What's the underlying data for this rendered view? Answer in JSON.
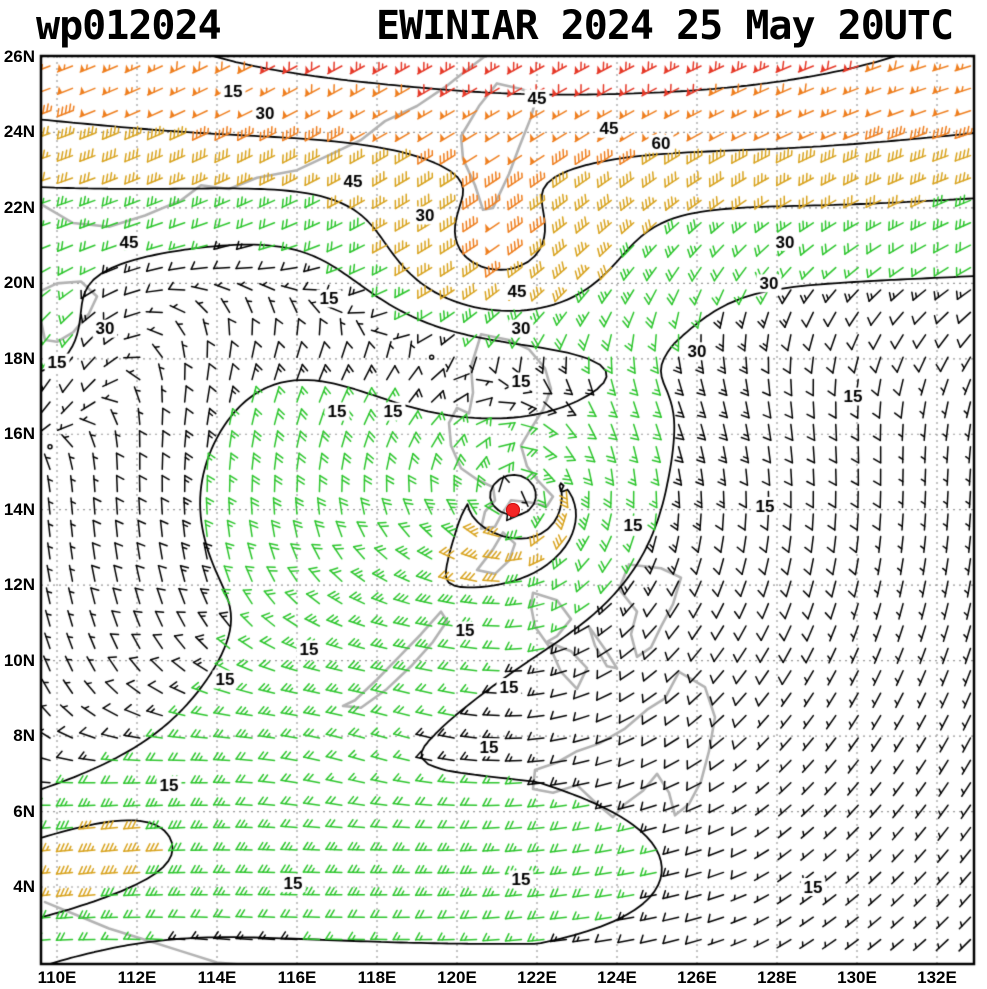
{
  "header": {
    "storm_id": "wp012024",
    "title": "EWINIAR 2024 25 May 20UTC"
  },
  "axes": {
    "lat_ticks": [
      {
        "label": "26N",
        "lat": 26
      },
      {
        "label": "24N",
        "lat": 24
      },
      {
        "label": "22N",
        "lat": 22
      },
      {
        "label": "20N",
        "lat": 20
      },
      {
        "label": "18N",
        "lat": 18
      },
      {
        "label": "16N",
        "lat": 16
      },
      {
        "label": "14N",
        "lat": 14
      },
      {
        "label": "12N",
        "lat": 12
      },
      {
        "label": "10N",
        "lat": 10
      },
      {
        "label": "8N",
        "lat": 8
      },
      {
        "label": "6N",
        "lat": 6
      },
      {
        "label": "4N",
        "lat": 4
      }
    ],
    "lon_ticks": [
      {
        "label": "110E",
        "lon": 110
      },
      {
        "label": "112E",
        "lon": 112
      },
      {
        "label": "114E",
        "lon": 114
      },
      {
        "label": "116E",
        "lon": 116
      },
      {
        "label": "118E",
        "lon": 118
      },
      {
        "label": "120E",
        "lon": 120
      },
      {
        "label": "122E",
        "lon": 122
      },
      {
        "label": "124E",
        "lon": 124
      },
      {
        "label": "126E",
        "lon": 126
      },
      {
        "label": "128E",
        "lon": 128
      },
      {
        "label": "130E",
        "lon": 130
      },
      {
        "label": "132E",
        "lon": 132
      }
    ]
  },
  "chart_data": {
    "type": "wind-barb-map",
    "title": "EWINIAR 2024 25 May 20UTC",
    "storm": {
      "id": "wp012024",
      "name": "EWINIAR",
      "datetime": "25 May 2024 20UTC",
      "center": {
        "lon": 121.4,
        "lat": 14.0
      }
    },
    "lon_range": [
      109.6,
      132.95
    ],
    "lat_range": [
      1.9,
      26.05
    ],
    "grid_interval_deg": 2,
    "grid_on": true,
    "isotach_levels_kt": [
      15,
      30,
      45,
      60
    ],
    "wind_speed_colors": {
      "lt15": "#000000",
      "c15_30": "#2dc62d",
      "c30_45": "#d9a420",
      "c45_60": "#ef7f1f",
      "ge60": "#e63928"
    },
    "storm_marker_color": "#f42525",
    "coastline_color": "#b3b3b3",
    "contour_color": "#000000",
    "contour_labels": [
      {
        "t": "15",
        "lon": 114.4,
        "lat": 25.1
      },
      {
        "t": "30",
        "lon": 115.2,
        "lat": 24.5
      },
      {
        "t": "45",
        "lon": 122.0,
        "lat": 24.9
      },
      {
        "t": "45",
        "lon": 123.8,
        "lat": 24.1
      },
      {
        "t": "60",
        "lon": 125.1,
        "lat": 23.7
      },
      {
        "t": "45",
        "lon": 117.4,
        "lat": 22.7
      },
      {
        "t": "30",
        "lon": 119.2,
        "lat": 21.8
      },
      {
        "t": "45",
        "lon": 111.8,
        "lat": 21.1
      },
      {
        "t": "30",
        "lon": 128.2,
        "lat": 21.1
      },
      {
        "t": "30",
        "lon": 127.8,
        "lat": 20.0
      },
      {
        "t": "45",
        "lon": 121.5,
        "lat": 19.8
      },
      {
        "t": "15",
        "lon": 116.8,
        "lat": 19.6
      },
      {
        "t": "30",
        "lon": 111.2,
        "lat": 18.8
      },
      {
        "t": "30",
        "lon": 121.6,
        "lat": 18.8
      },
      {
        "t": "30",
        "lon": 126.0,
        "lat": 18.2
      },
      {
        "t": "15",
        "lon": 110.0,
        "lat": 17.9
      },
      {
        "t": "15",
        "lon": 121.6,
        "lat": 17.4
      },
      {
        "t": "15",
        "lon": 129.9,
        "lat": 17.0
      },
      {
        "t": "15",
        "lon": 117.0,
        "lat": 16.6
      },
      {
        "t": "15",
        "lon": 118.4,
        "lat": 16.6
      },
      {
        "t": "15",
        "lon": 127.7,
        "lat": 14.1
      },
      {
        "t": "15",
        "lon": 124.4,
        "lat": 13.6
      },
      {
        "t": "15",
        "lon": 120.2,
        "lat": 10.8
      },
      {
        "t": "15",
        "lon": 116.3,
        "lat": 10.3
      },
      {
        "t": "15",
        "lon": 114.2,
        "lat": 9.5
      },
      {
        "t": "15",
        "lon": 121.3,
        "lat": 9.3
      },
      {
        "t": "15",
        "lon": 120.8,
        "lat": 7.7
      },
      {
        "t": "15",
        "lon": 112.8,
        "lat": 6.7
      },
      {
        "t": "15",
        "lon": 115.9,
        "lat": 4.1
      },
      {
        "t": "15",
        "lon": 121.6,
        "lat": 4.2
      },
      {
        "t": "15",
        "lon": 128.9,
        "lat": 4.0
      }
    ],
    "wind_field_model": {
      "vortex": {
        "lon": 121.5,
        "lat": 14.05,
        "vmax": 30,
        "rmw": 1.25,
        "decay": 0.8,
        "outer_amp": 12,
        "outer_r": 6,
        "outer_w": 4,
        "outer_phase": 2.4
      },
      "jet": {
        "amp": 72,
        "lat0": 27.0,
        "width": 5.8,
        "lon_peak": 123.5,
        "lon_width": 12,
        "base": 0.78,
        "peak_frac": 0.22,
        "dir_u": 0.92,
        "v_amp": 0.39,
        "v_lon0": 118,
        "v_lonw": 14,
        "v_base": 0.1
      },
      "dip": {
        "amp": 42,
        "lat0": 20.3,
        "latw": 2.4,
        "lon0": 120.8,
        "lonw": 3.4,
        "du": 0.9,
        "dv": 0.44
      },
      "surge": {
        "amp": 16,
        "lat_base": 4.5,
        "slope": 0.78,
        "width": 2.6,
        "lon_end": 123,
        "du": 0.92,
        "dv": 0.3
      },
      "eq": {
        "amp": 19,
        "lat0": 4.3,
        "width": 2.2,
        "lon_fade": 122,
        "lon_end": 128,
        "du": 0.98,
        "dv": 0.12
      },
      "west_patch": {
        "amp": 18,
        "lat0": 18.2,
        "latw": 2.3,
        "lon0": 109.5,
        "lonw": 2.6,
        "du": 0.35,
        "dv": 0.94
      }
    },
    "coastlines": [
      {
        "name": "china-coast",
        "closed": false,
        "pts": [
          [
            109.6,
            22.1
          ],
          [
            110.4,
            21.6
          ],
          [
            111.3,
            21.5
          ],
          [
            112.2,
            21.8
          ],
          [
            113.1,
            22.2
          ],
          [
            113.6,
            22.6
          ],
          [
            114.3,
            22.5
          ],
          [
            115.0,
            22.8
          ],
          [
            116.0,
            23.0
          ],
          [
            116.8,
            23.4
          ],
          [
            117.6,
            23.8
          ],
          [
            118.2,
            24.3
          ],
          [
            119.0,
            24.7
          ],
          [
            119.7,
            25.2
          ],
          [
            120.3,
            25.7
          ],
          [
            120.8,
            26.1
          ]
        ]
      },
      {
        "name": "hainan",
        "closed": true,
        "pts": [
          [
            110.0,
            20.0
          ],
          [
            110.6,
            20.05
          ],
          [
            111.0,
            19.65
          ],
          [
            110.8,
            19.2
          ],
          [
            110.4,
            18.7
          ],
          [
            110.0,
            18.45
          ],
          [
            109.7,
            18.5
          ],
          [
            109.6,
            19.0
          ],
          [
            109.6,
            19.8
          ],
          [
            110.0,
            20.0
          ]
        ]
      },
      {
        "name": "taiwan",
        "closed": true,
        "pts": [
          [
            121.0,
            25.3
          ],
          [
            121.6,
            25.15
          ],
          [
            122.0,
            25.0
          ],
          [
            121.85,
            24.4
          ],
          [
            121.55,
            23.6
          ],
          [
            121.3,
            22.9
          ],
          [
            120.9,
            22.0
          ],
          [
            120.65,
            21.95
          ],
          [
            120.45,
            22.6
          ],
          [
            120.15,
            23.3
          ],
          [
            120.1,
            23.9
          ],
          [
            120.55,
            24.7
          ],
          [
            121.0,
            25.3
          ]
        ]
      },
      {
        "name": "luzon",
        "closed": true,
        "pts": [
          [
            120.6,
            18.65
          ],
          [
            121.3,
            18.5
          ],
          [
            121.8,
            18.25
          ],
          [
            122.2,
            17.75
          ],
          [
            122.35,
            17.2
          ],
          [
            122.15,
            16.65
          ],
          [
            121.85,
            16.15
          ],
          [
            121.6,
            15.7
          ],
          [
            121.75,
            15.15
          ],
          [
            122.0,
            14.8
          ],
          [
            122.4,
            14.35
          ],
          [
            122.25,
            14.1
          ],
          [
            121.8,
            14.2
          ],
          [
            121.35,
            14.25
          ],
          [
            121.1,
            13.85
          ],
          [
            120.95,
            13.55
          ],
          [
            120.6,
            13.5
          ],
          [
            120.7,
            13.95
          ],
          [
            120.95,
            14.25
          ],
          [
            120.9,
            14.6
          ],
          [
            120.5,
            14.8
          ],
          [
            120.1,
            15.1
          ],
          [
            119.85,
            15.7
          ],
          [
            119.8,
            16.3
          ],
          [
            120.0,
            16.7
          ],
          [
            120.3,
            16.55
          ],
          [
            120.4,
            17.1
          ],
          [
            120.35,
            17.8
          ],
          [
            120.5,
            18.3
          ],
          [
            120.6,
            18.65
          ]
        ]
      },
      {
        "name": "mindoro",
        "closed": true,
        "pts": [
          [
            121.15,
            13.4
          ],
          [
            120.9,
            12.95
          ],
          [
            120.5,
            12.4
          ],
          [
            120.95,
            12.3
          ],
          [
            121.3,
            12.65
          ],
          [
            121.45,
            13.1
          ],
          [
            121.15,
            13.4
          ]
        ]
      },
      {
        "name": "palawan",
        "closed": true,
        "pts": [
          [
            119.6,
            11.3
          ],
          [
            119.1,
            10.7
          ],
          [
            118.55,
            10.1
          ],
          [
            118.0,
            9.5
          ],
          [
            117.45,
            8.95
          ],
          [
            117.15,
            8.8
          ],
          [
            117.6,
            8.75
          ],
          [
            118.25,
            9.25
          ],
          [
            118.85,
            9.85
          ],
          [
            119.4,
            10.5
          ],
          [
            119.75,
            11.05
          ],
          [
            119.6,
            11.3
          ]
        ]
      },
      {
        "name": "samar-leyte",
        "closed": true,
        "pts": [
          [
            124.3,
            12.55
          ],
          [
            125.1,
            12.45
          ],
          [
            125.6,
            12.2
          ],
          [
            125.4,
            11.5
          ],
          [
            125.1,
            10.9
          ],
          [
            124.85,
            10.35
          ],
          [
            124.5,
            10.1
          ],
          [
            124.35,
            10.7
          ],
          [
            124.5,
            11.3
          ],
          [
            124.05,
            11.9
          ],
          [
            124.3,
            12.55
          ]
        ]
      },
      {
        "name": "panay-negros",
        "closed": true,
        "pts": [
          [
            121.9,
            11.8
          ],
          [
            122.5,
            11.6
          ],
          [
            122.85,
            11.1
          ],
          [
            122.5,
            10.65
          ],
          [
            122.25,
            10.5
          ],
          [
            122.85,
            10.25
          ],
          [
            123.25,
            9.8
          ],
          [
            123.0,
            9.25
          ],
          [
            122.6,
            9.7
          ],
          [
            122.35,
            10.3
          ],
          [
            121.95,
            10.9
          ],
          [
            121.85,
            11.45
          ],
          [
            121.9,
            11.8
          ]
        ]
      },
      {
        "name": "cebu",
        "closed": false,
        "pts": [
          [
            123.3,
            10.9
          ],
          [
            123.7,
            10.3
          ],
          [
            124.0,
            9.8
          ],
          [
            123.75,
            9.85
          ],
          [
            123.45,
            10.4
          ],
          [
            123.3,
            10.9
          ]
        ]
      },
      {
        "name": "mindanao",
        "closed": true,
        "pts": [
          [
            121.9,
            6.6
          ],
          [
            122.4,
            6.5
          ],
          [
            123.0,
            6.7
          ],
          [
            123.5,
            6.2
          ],
          [
            123.9,
            5.85
          ],
          [
            124.2,
            6.2
          ],
          [
            124.65,
            6.55
          ],
          [
            125.0,
            7.0
          ],
          [
            125.3,
            6.5
          ],
          [
            125.45,
            5.9
          ],
          [
            125.8,
            6.2
          ],
          [
            126.1,
            6.8
          ],
          [
            126.3,
            7.6
          ],
          [
            126.45,
            8.5
          ],
          [
            126.2,
            9.3
          ],
          [
            125.55,
            9.7
          ],
          [
            125.2,
            9.0
          ],
          [
            124.75,
            8.7
          ],
          [
            124.2,
            8.2
          ],
          [
            123.55,
            7.8
          ],
          [
            123.0,
            7.6
          ],
          [
            122.5,
            7.3
          ],
          [
            121.95,
            7.1
          ],
          [
            121.9,
            6.6
          ]
        ]
      },
      {
        "name": "borneo",
        "closed": false,
        "pts": [
          [
            109.7,
            3.6
          ],
          [
            110.5,
            3.25
          ],
          [
            111.3,
            2.9
          ],
          [
            112.2,
            2.6
          ],
          [
            113.1,
            2.3
          ],
          [
            114.0,
            2.0
          ],
          [
            114.5,
            1.95
          ]
        ]
      }
    ]
  }
}
